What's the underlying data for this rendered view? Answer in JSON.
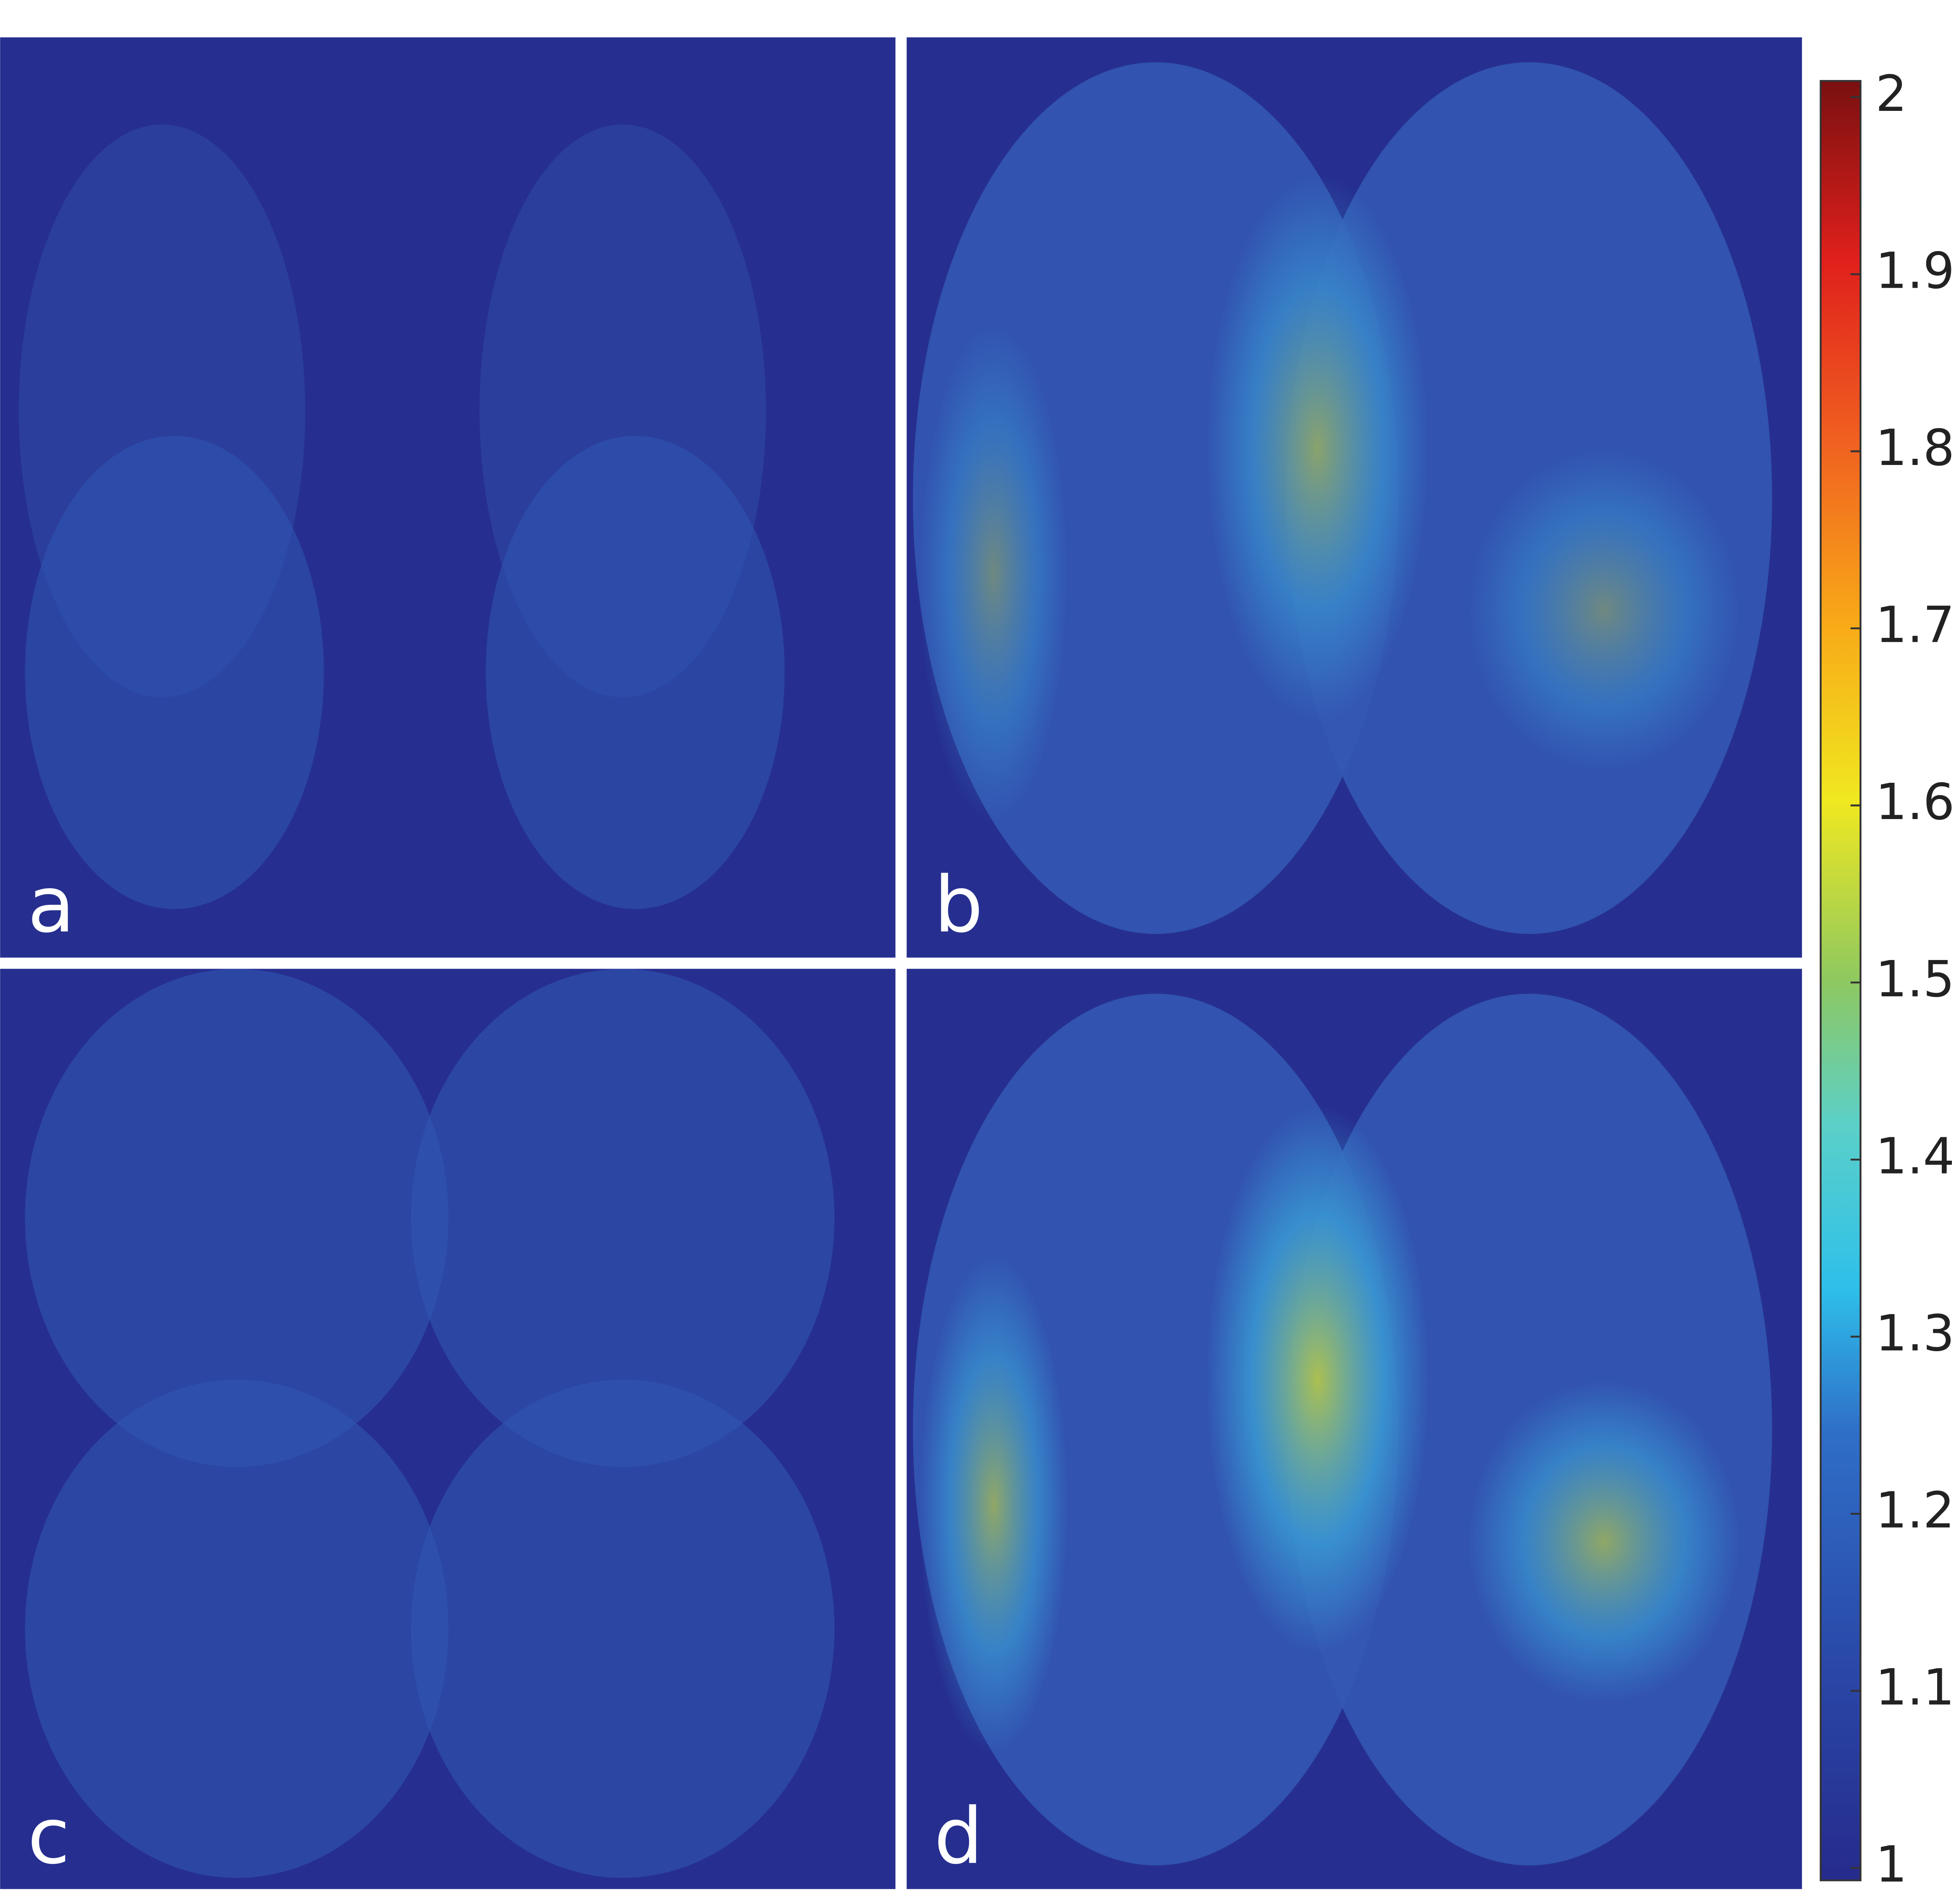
{
  "panels": [
    {
      "label": "a"
    },
    {
      "label": "b"
    },
    {
      "label": "c"
    },
    {
      "label": "d"
    }
  ],
  "colorbar": {
    "lim": [
      1,
      2
    ],
    "ticks": [
      1,
      1.1,
      1.2,
      1.3,
      1.4,
      1.5,
      1.6,
      1.7,
      1.8,
      1.9,
      2
    ]
  }
}
